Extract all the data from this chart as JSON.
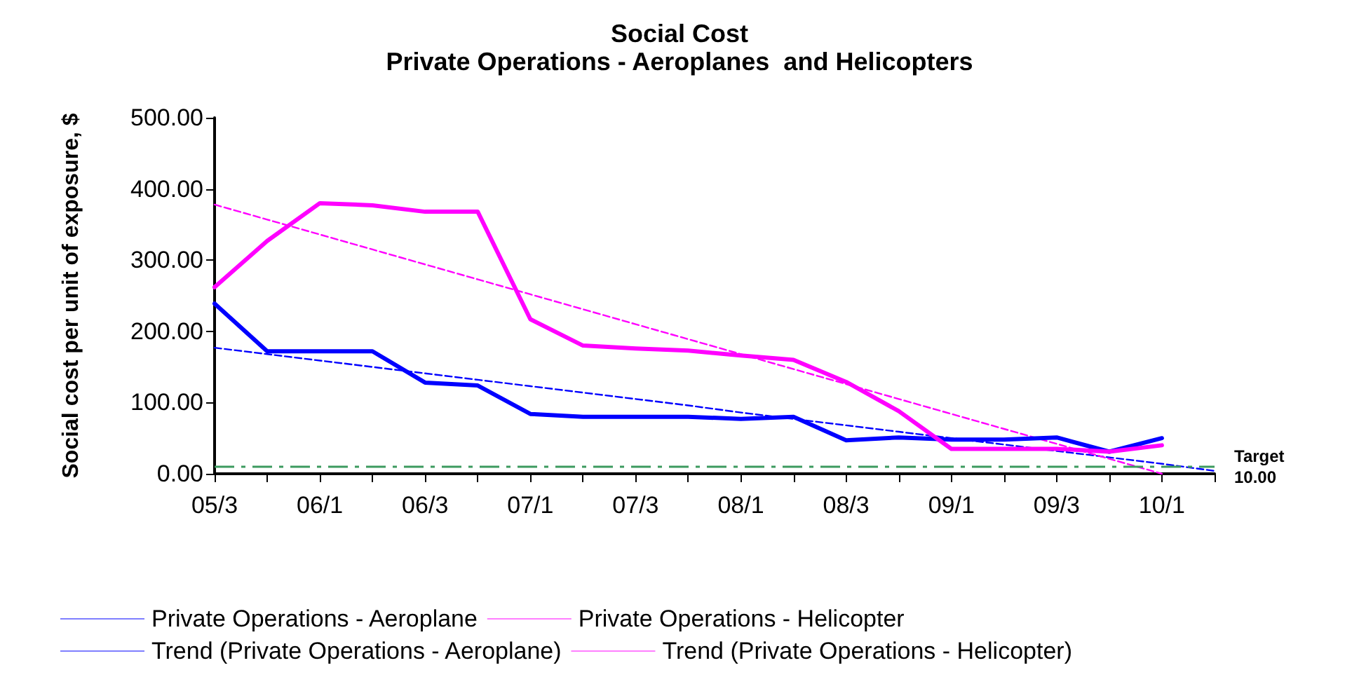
{
  "chart_data": {
    "type": "line",
    "title": "Social Cost",
    "subtitle": "Private Operations - Aeroplanes  and Helicopters",
    "ylabel": "Social cost per unit of exposure, $",
    "categories": [
      "05/3",
      null,
      "06/1",
      null,
      "06/3",
      null,
      "07/1",
      null,
      "07/3",
      null,
      "08/1",
      null,
      "08/3",
      null,
      "09/1",
      null,
      "09/3",
      null,
      "10/1",
      null
    ],
    "series": [
      {
        "name": "Private Operations - Aeroplane",
        "color": "#0000ff",
        "values": [
          239,
          172,
          172,
          172,
          128,
          124,
          84,
          80,
          80,
          80,
          77,
          80,
          47,
          51,
          48,
          48,
          51,
          31,
          50,
          null
        ]
      },
      {
        "name": "Private Operations - Helicopter",
        "color": "#ff00ff",
        "values": [
          262,
          327,
          380,
          377,
          368,
          368,
          217,
          180,
          176,
          173,
          166,
          160,
          129,
          88,
          35,
          35,
          35,
          31,
          40,
          null
        ]
      },
      {
        "name": "Trend (Private Operations - Aeroplane)",
        "color": "#0000ff",
        "line_style": "dashed",
        "values": [
          177,
          168,
          159,
          150,
          141,
          132,
          123,
          114,
          105,
          96,
          86,
          77,
          68,
          59,
          50,
          41,
          32,
          23,
          14,
          4
        ]
      },
      {
        "name": "Trend (Private Operations - Helicopter)",
        "color": "#ff00ff",
        "line_style": "dashed",
        "values": [
          378,
          357,
          336,
          315,
          294,
          273,
          252,
          231,
          210,
          189,
          168,
          147,
          126,
          105,
          84,
          63,
          42,
          21,
          0,
          null
        ]
      }
    ],
    "ylim": [
      0,
      500
    ],
    "yticks": [
      {
        "value": 0,
        "label": "0.00"
      },
      {
        "value": 100,
        "label": "100.00"
      },
      {
        "value": 200,
        "label": "200.00"
      },
      {
        "value": 300,
        "label": "300.00"
      },
      {
        "value": 400,
        "label": "400.00"
      },
      {
        "value": 500,
        "label": "500.00"
      }
    ],
    "ref_lines": [
      {
        "axis": "y",
        "value": 10,
        "label": "Target\n10.00",
        "color": "#3c9a5f",
        "line_style": "dashed"
      }
    ],
    "grid": false,
    "legend": "bottom",
    "marker": "none",
    "line_style": "solid"
  }
}
